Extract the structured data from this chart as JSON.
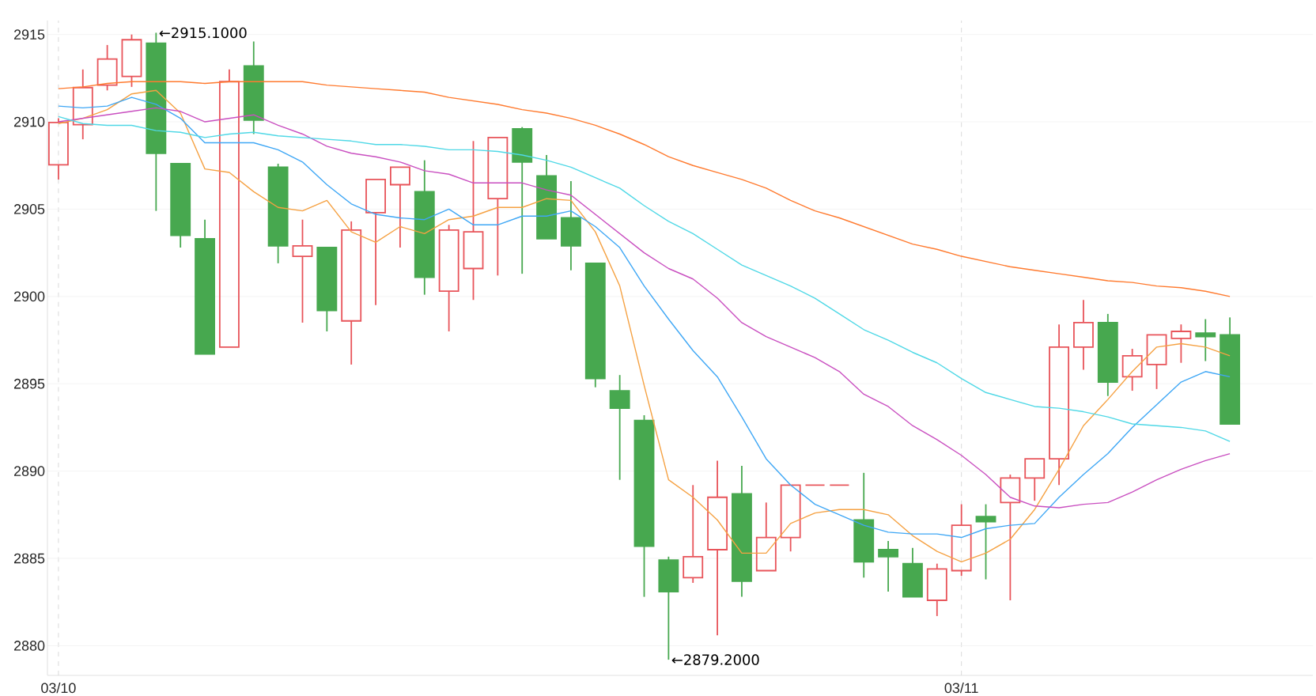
{
  "chart_data": {
    "type": "candlestick",
    "categories": [
      "03/10",
      null,
      null,
      null,
      null,
      null,
      null,
      null,
      null,
      null,
      null,
      null,
      null,
      null,
      null,
      null,
      null,
      null,
      null,
      null,
      null,
      null,
      null,
      null,
      null,
      null,
      null,
      null,
      null,
      null,
      null,
      null,
      null,
      null,
      null,
      null,
      null,
      "03/11",
      null,
      null,
      null,
      null,
      null,
      null,
      null,
      null,
      null,
      null,
      null
    ],
    "ohlc": [
      [
        2907.54,
        2910.2,
        2906.7,
        2909.96
      ],
      [
        2909.84,
        2913.0,
        2909.0,
        2911.96
      ],
      [
        2912.1,
        2914.4,
        2911.8,
        2913.6
      ],
      [
        2912.6,
        2915.0,
        2912.0,
        2914.7
      ],
      [
        2914.5,
        2915.1,
        2904.9,
        2908.2
      ],
      [
        2907.6,
        2907.6,
        2902.8,
        2903.5
      ],
      [
        2903.3,
        2904.4,
        2896.7,
        2896.7
      ],
      [
        2897.1,
        2913.0,
        2897.1,
        2912.3
      ],
      [
        2913.2,
        2914.6,
        2909.3,
        2910.1
      ],
      [
        2907.4,
        2907.6,
        2901.9,
        2902.9
      ],
      [
        2902.3,
        2904.4,
        2898.5,
        2902.9
      ],
      [
        2902.8,
        2902.8,
        2898.0,
        2899.2
      ],
      [
        2898.6,
        2904.3,
        2896.1,
        2903.8
      ],
      [
        2904.8,
        2906.7,
        2899.5,
        2906.7
      ],
      [
        2906.4,
        2907.4,
        2902.8,
        2907.4
      ],
      [
        2906.0,
        2907.8,
        2900.1,
        2901.1
      ],
      [
        2900.3,
        2904.1,
        2898.0,
        2903.8
      ],
      [
        2901.6,
        2908.9,
        2899.8,
        2903.7
      ],
      [
        2905.6,
        2909.1,
        2901.2,
        2909.1
      ],
      [
        2909.6,
        2909.7,
        2901.3,
        2907.7
      ],
      [
        2906.9,
        2908.1,
        2903.3,
        2903.3
      ],
      [
        2904.5,
        2906.6,
        2901.5,
        2902.9
      ],
      [
        2901.9,
        2901.9,
        2894.8,
        2895.3
      ],
      [
        2894.6,
        2895.5,
        2889.5,
        2893.6
      ],
      [
        2892.9,
        2893.2,
        2882.8,
        2885.7
      ],
      [
        2884.9,
        2885.1,
        2879.2,
        2883.1
      ],
      [
        2883.9,
        2889.2,
        2883.6,
        2885.1
      ],
      [
        2885.5,
        2890.6,
        2880.6,
        2888.5
      ],
      [
        2888.7,
        2890.3,
        2882.8,
        2883.7
      ],
      [
        2884.3,
        2888.2,
        2884.3,
        2886.2
      ],
      [
        2886.2,
        2889.2,
        2885.4,
        2889.2
      ],
      [
        2889.2,
        2889.2,
        2889.2,
        2889.2
      ],
      [
        2889.2,
        2889.2,
        2889.2,
        2889.2
      ],
      [
        2887.2,
        2889.9,
        2883.9,
        2884.8
      ],
      [
        2885.5,
        2886.0,
        2883.1,
        2885.1
      ],
      [
        2884.7,
        2885.6,
        2882.8,
        2882.8
      ],
      [
        2882.6,
        2884.7,
        2881.7,
        2884.4
      ],
      [
        2884.3,
        2888.1,
        2884.0,
        2886.9
      ],
      [
        2887.4,
        2888.1,
        2883.8,
        2887.1
      ],
      [
        2888.2,
        2889.8,
        2882.6,
        2889.6
      ],
      [
        2889.6,
        2890.7,
        2888.3,
        2890.7
      ],
      [
        2890.7,
        2898.4,
        2889.2,
        2897.1
      ],
      [
        2897.1,
        2899.8,
        2895.8,
        2898.5
      ],
      [
        2898.5,
        2899.0,
        2894.3,
        2895.1
      ],
      [
        2895.4,
        2897.0,
        2894.6,
        2896.6
      ],
      [
        2896.1,
        2897.8,
        2894.7,
        2897.8
      ],
      [
        2897.6,
        2898.4,
        2896.2,
        2898.0
      ],
      [
        2897.9,
        2898.7,
        2896.3,
        2897.7
      ],
      [
        2897.8,
        2898.8,
        2892.7,
        2892.7
      ]
    ],
    "colors": [
      "#e8545a",
      "#e8545a",
      "#e8545a",
      "#e8545a",
      "#47a84f",
      "#47a84f",
      "#47a84f",
      "#e8545a",
      "#47a84f",
      "#47a84f",
      "#e8545a",
      "#47a84f",
      "#e8545a",
      "#e8545a",
      "#e8545a",
      "#47a84f",
      "#e8545a",
      "#e8545a",
      "#e8545a",
      "#47a84f",
      "#47a84f",
      "#47a84f",
      "#47a84f",
      "#47a84f",
      "#47a84f",
      "#47a84f",
      "#e8545a",
      "#e8545a",
      "#47a84f",
      "#e8545a",
      "#e8545a",
      "#e8545a",
      "#e8545a",
      "#47a84f",
      "#47a84f",
      "#47a84f",
      "#e8545a",
      "#e8545a",
      "#47a84f",
      "#e8545a",
      "#e8545a",
      "#e8545a",
      "#e8545a",
      "#47a84f",
      "#e8545a",
      "#e8545a",
      "#e8545a",
      "#47a84f",
      "#47a84f"
    ],
    "series": [
      {
        "type": "line",
        "color": "#f5a142",
        "values": [
          2909.9,
          2910.2,
          2910.7,
          2911.6,
          2911.8,
          2910.5,
          2907.3,
          2907.1,
          2906.0,
          2905.1,
          2904.9,
          2905.5,
          2903.7,
          2903.1,
          2904.0,
          2903.6,
          2904.4,
          2904.6,
          2905.1,
          2905.1,
          2905.6,
          2905.5,
          2903.7,
          2900.6,
          2894.9,
          2889.5,
          2888.5,
          2887.2,
          2885.3,
          2885.3,
          2887.0,
          2887.6,
          2887.8,
          2887.8,
          2887.5,
          2886.3,
          2885.4,
          2884.8,
          2885.3,
          2886.1,
          2887.8,
          2890.1,
          2892.6,
          2894.1,
          2895.7,
          2897.1,
          2897.3,
          2897.1,
          2896.6
        ]
      },
      {
        "type": "line",
        "color": "#3fa7f5",
        "values": [
          2910.9,
          2910.8,
          2910.9,
          2911.4,
          2911.0,
          2910.2,
          2908.8,
          2908.8,
          2908.8,
          2908.4,
          2907.7,
          2906.4,
          2905.3,
          2904.7,
          2904.5,
          2904.4,
          2905.0,
          2904.1,
          2904.1,
          2904.6,
          2904.6,
          2904.9,
          2904.0,
          2902.8,
          2900.6,
          2898.7,
          2896.9,
          2895.4,
          2893.1,
          2890.7,
          2889.2,
          2888.1,
          2887.5,
          2886.9,
          2886.5,
          2886.4,
          2886.4,
          2886.2,
          2886.7,
          2886.9,
          2887.0,
          2888.5,
          2889.8,
          2891.0,
          2892.5,
          2893.8,
          2895.1,
          2895.7,
          2895.4
        ]
      },
      {
        "type": "line",
        "color": "#c94fc0",
        "values": [
          2910.0,
          2910.2,
          2910.4,
          2910.6,
          2910.8,
          2910.6,
          2910.0,
          2910.2,
          2910.4,
          2909.8,
          2909.3,
          2908.6,
          2908.2,
          2908.0,
          2907.7,
          2907.2,
          2907.0,
          2906.5,
          2906.5,
          2906.5,
          2906.1,
          2905.8,
          2904.7,
          2903.6,
          2902.5,
          2901.6,
          2901.0,
          2899.9,
          2898.5,
          2897.7,
          2897.1,
          2896.5,
          2895.7,
          2894.4,
          2893.7,
          2892.6,
          2891.8,
          2890.9,
          2889.8,
          2888.5,
          2888.0,
          2887.9,
          2888.1,
          2888.2,
          2888.8,
          2889.5,
          2890.1,
          2890.6,
          2891.0
        ]
      },
      {
        "type": "line",
        "color": "#4fd8e6",
        "values": [
          2910.3,
          2909.9,
          2909.8,
          2909.8,
          2909.5,
          2909.4,
          2909.1,
          2909.3,
          2909.4,
          2909.2,
          2909.1,
          2909.0,
          2908.9,
          2908.7,
          2908.7,
          2908.6,
          2908.4,
          2908.4,
          2908.3,
          2908.1,
          2907.8,
          2907.4,
          2906.8,
          2906.2,
          2905.2,
          2904.3,
          2903.6,
          2902.7,
          2901.8,
          2901.2,
          2900.6,
          2899.9,
          2899.0,
          2898.1,
          2897.5,
          2896.8,
          2896.2,
          2895.3,
          2894.5,
          2894.1,
          2893.7,
          2893.6,
          2893.4,
          2893.1,
          2892.7,
          2892.6,
          2892.5,
          2892.3,
          2891.7
        ]
      },
      {
        "type": "line",
        "color": "#ff7a2e",
        "values": [
          2911.9,
          2912.0,
          2912.2,
          2912.3,
          2912.3,
          2912.3,
          2912.2,
          2912.3,
          2912.3,
          2912.3,
          2912.3,
          2912.1,
          2912.0,
          2911.9,
          2911.8,
          2911.7,
          2911.4,
          2911.2,
          2911.0,
          2910.7,
          2910.5,
          2910.2,
          2909.8,
          2909.3,
          2908.7,
          2908.0,
          2907.5,
          2907.1,
          2906.7,
          2906.2,
          2905.5,
          2904.9,
          2904.5,
          2904.0,
          2903.5,
          2903.0,
          2902.7,
          2902.3,
          2902.0,
          2901.7,
          2901.5,
          2901.3,
          2901.1,
          2900.9,
          2900.8,
          2900.6,
          2900.5,
          2900.3,
          2900.0
        ]
      }
    ],
    "ylim": [
      2878.3,
      2915.8
    ],
    "yticks": [
      2880,
      2885,
      2890,
      2895,
      2900,
      2905,
      2910,
      2915
    ],
    "grid": true,
    "annotations": [
      "←2915.1000",
      "←2879.2000"
    ]
  }
}
